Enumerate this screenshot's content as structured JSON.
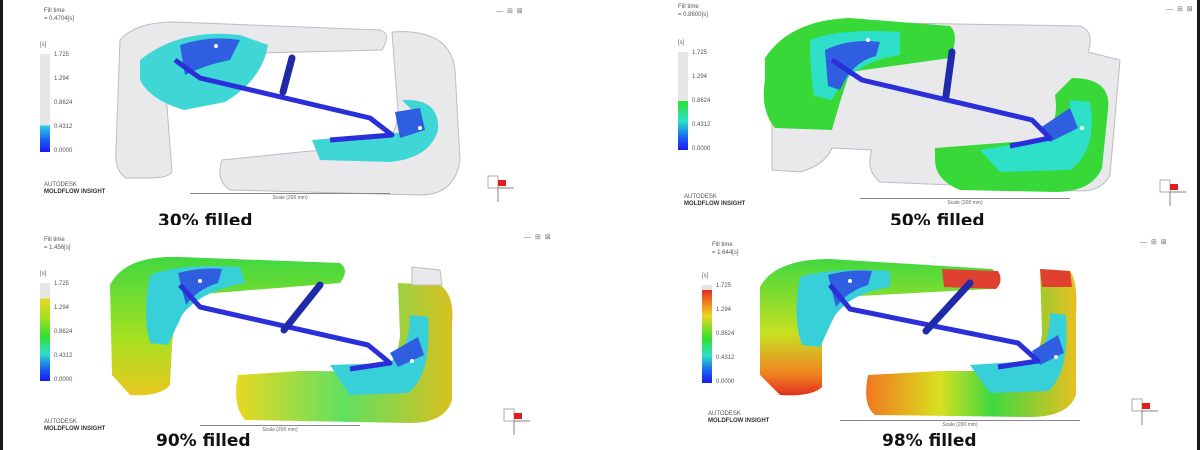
{
  "colors": {
    "frame_border": "#1a1a1a",
    "runner_blue": "#2b2fd9",
    "unfilled_part": "#e9e9ec",
    "part_outline": "#bdbdc2"
  },
  "panels": [
    {
      "caption": "30% filled",
      "header": {
        "title": "Fill time",
        "time": "= 0.4704[s]"
      },
      "toolbar": "— ⊞ ⊠",
      "legend": {
        "unit": "[s]",
        "ticks": [
          "1.725",
          "1.294",
          "0.8624",
          "0.4312",
          "0.0000"
        ],
        "fill_fraction": 0.27
      },
      "brand": [
        "AUTODESK",
        "MOLDFLOW INSIGHT"
      ],
      "scale_label": "Scale (200 mm)",
      "icons": [
        "color-legend-icon",
        "axis-triad-icon"
      ]
    },
    {
      "caption": "50% filled",
      "header": {
        "title": "Fill time",
        "time": "= 0.8600[s]"
      },
      "toolbar": "— ⊞ ⊠",
      "legend": {
        "unit": "[s]",
        "ticks": [
          "1.725",
          "1.294",
          "0.8624",
          "0.4312",
          "0.0000"
        ],
        "fill_fraction": 0.5
      },
      "brand": [
        "AUTODESK",
        "MOLDFLOW INSIGHT"
      ],
      "scale_label": "Scale (200 mm)",
      "icons": [
        "color-legend-icon",
        "axis-triad-icon"
      ]
    },
    {
      "caption": "90% filled",
      "header": {
        "title": "Fill time",
        "time": "= 1.456[s]"
      },
      "toolbar": "— ⊞ ⊠",
      "legend": {
        "unit": "[s]",
        "ticks": [
          "1.725",
          "1.294",
          "0.8624",
          "0.4312",
          "0.0000"
        ],
        "fill_fraction": 0.84
      },
      "brand": [
        "AUTODESK",
        "MOLDFLOW INSIGHT"
      ],
      "scale_label": "Scale (200 mm)",
      "icons": [
        "color-legend-icon",
        "axis-triad-icon"
      ]
    },
    {
      "caption": "98% filled",
      "header": {
        "title": "Fill time",
        "time": "= 1.644[s]"
      },
      "toolbar": "— ⊞ ⊠",
      "legend": {
        "unit": "[s]",
        "ticks": [
          "1.725",
          "1.294",
          "0.8624",
          "0.4312",
          "0.0000"
        ],
        "fill_fraction": 0.95
      },
      "brand": [
        "AUTODESK",
        "MOLDFLOW INSIGHT"
      ],
      "scale_label": "Scale (200 mm)",
      "icons": [
        "color-legend-icon",
        "axis-triad-icon"
      ]
    }
  ]
}
